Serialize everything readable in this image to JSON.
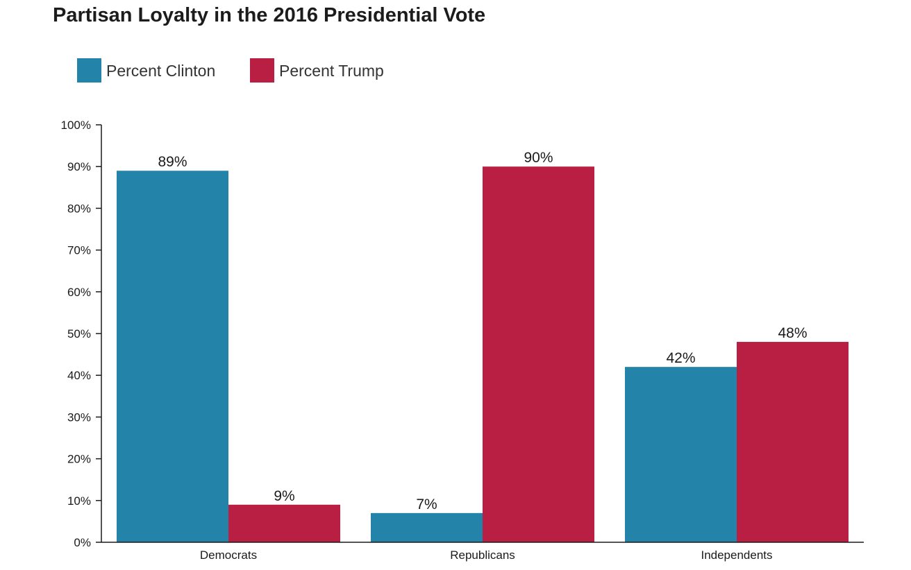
{
  "chart_data": {
    "type": "bar",
    "title": "Partisan Loyalty in the 2016 Presidential Vote",
    "categories": [
      "Democrats",
      "Republicans",
      "Independents"
    ],
    "series": [
      {
        "name": "Percent Clinton",
        "color": "#2383a8",
        "values": [
          89,
          7,
          42
        ],
        "labels": [
          "89%",
          "7%",
          "42%"
        ]
      },
      {
        "name": "Percent Trump",
        "color": "#b91f42",
        "values": [
          9,
          90,
          48
        ],
        "labels": [
          "9%",
          "90%",
          "48%"
        ]
      }
    ],
    "yticks": [
      {
        "value": 0,
        "label": "0%"
      },
      {
        "value": 10,
        "label": "10%"
      },
      {
        "value": 20,
        "label": "20%"
      },
      {
        "value": 30,
        "label": "30%"
      },
      {
        "value": 40,
        "label": "40%"
      },
      {
        "value": 50,
        "label": "50%"
      },
      {
        "value": 60,
        "label": "60%"
      },
      {
        "value": 70,
        "label": "70%"
      },
      {
        "value": 80,
        "label": "80%"
      },
      {
        "value": 90,
        "label": "90%"
      },
      {
        "value": 100,
        "label": "100%"
      }
    ],
    "ylim": [
      0,
      100
    ],
    "xlabel": "",
    "ylabel": "",
    "grid": false,
    "legend_position": "top-left"
  }
}
